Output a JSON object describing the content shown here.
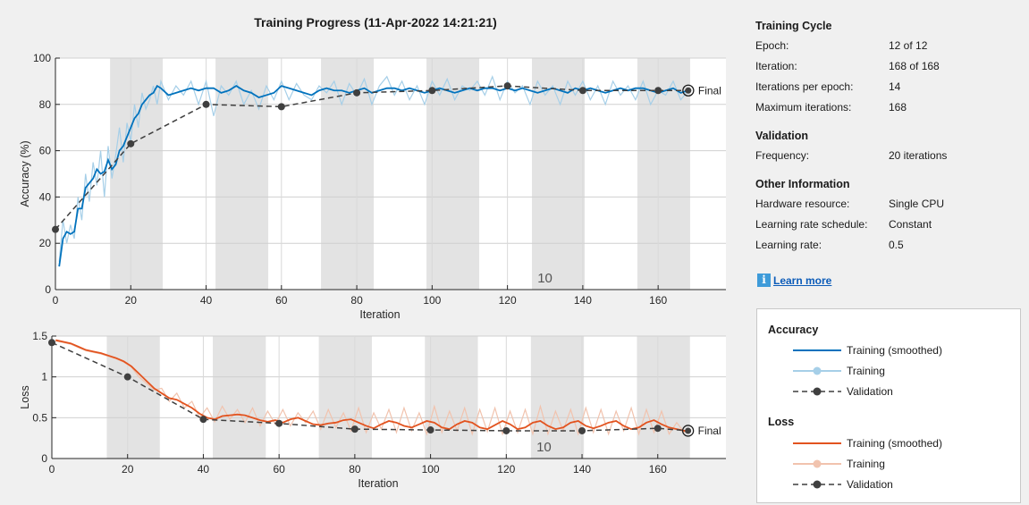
{
  "title": "Training Progress (11-Apr-2022 14:21:21)",
  "colors": {
    "acc_smoothed": "#0072bd",
    "acc_training": "#a6cfe8",
    "loss_smoothed": "#e2531f",
    "loss_training": "#f1c3ae",
    "validation": "#3f3f3f",
    "epoch_band": "#e3e3e3"
  },
  "info": {
    "training_cycle": {
      "title": "Training Cycle",
      "rows": [
        {
          "key": "Epoch:",
          "value": "12 of 12"
        },
        {
          "key": "Iteration:",
          "value": "168 of 168"
        },
        {
          "key": "Iterations per epoch:",
          "value": "14"
        },
        {
          "key": "Maximum iterations:",
          "value": "168"
        }
      ]
    },
    "validation": {
      "title": "Validation",
      "rows": [
        {
          "key": "Frequency:",
          "value": "20 iterations"
        }
      ]
    },
    "other": {
      "title": "Other Information",
      "rows": [
        {
          "key": "Hardware resource:",
          "value": "Single CPU"
        },
        {
          "key": "Learning rate schedule:",
          "value": "Constant"
        },
        {
          "key": "Learning rate:",
          "value": "0.5"
        }
      ]
    },
    "learn_more": {
      "icon": "info-icon",
      "label": "Learn more"
    }
  },
  "legend": {
    "accuracy_title": "Accuracy",
    "loss_title": "Loss",
    "accuracy_items": [
      "Training (smoothed)",
      "Training",
      "Validation"
    ],
    "loss_items": [
      "Training (smoothed)",
      "Training",
      "Validation"
    ]
  },
  "chart_data": [
    {
      "type": "line",
      "xlabel": "Iteration",
      "ylabel": "Accuracy (%)",
      "xlim": [
        0,
        178
      ],
      "ylim": [
        0,
        100
      ],
      "xticks": [
        0,
        20,
        40,
        60,
        80,
        100,
        120,
        140,
        160
      ],
      "yticks": [
        0,
        20,
        40,
        60,
        80,
        100
      ],
      "epoch_bands": [
        [
          14.5,
          28.5
        ],
        [
          42.5,
          56.5
        ],
        [
          70.5,
          84.5
        ],
        [
          98.5,
          112.5
        ],
        [
          126.5,
          140.5
        ],
        [
          154.5,
          168.5
        ]
      ],
      "epoch_annotation": {
        "text": "10",
        "x": 129
      },
      "final_label": "Final",
      "series": [
        {
          "name": "Training (smoothed)",
          "kind": "smoothed",
          "x": [
            1,
            2,
            3,
            4,
            5,
            6,
            7,
            8,
            9,
            10,
            11,
            12,
            13,
            14,
            15,
            16,
            17,
            18,
            19,
            20,
            21,
            22,
            23,
            24,
            25,
            26,
            27,
            28,
            30,
            32,
            34,
            36,
            38,
            40,
            42,
            44,
            46,
            48,
            50,
            52,
            54,
            56,
            58,
            60,
            62,
            64,
            66,
            68,
            70,
            72,
            74,
            76,
            78,
            80,
            82,
            84,
            86,
            88,
            90,
            92,
            94,
            96,
            98,
            100,
            102,
            104,
            106,
            108,
            110,
            112,
            114,
            116,
            118,
            120,
            122,
            124,
            126,
            128,
            130,
            132,
            134,
            136,
            138,
            140,
            142,
            144,
            146,
            148,
            150,
            152,
            154,
            156,
            158,
            160,
            162,
            164,
            166,
            168
          ],
          "y": [
            10,
            22,
            25,
            24,
            25,
            35,
            35,
            44,
            46,
            48,
            52,
            50,
            51,
            56,
            52,
            54,
            60,
            62,
            66,
            70,
            74,
            76,
            80,
            82,
            84,
            85,
            88,
            87,
            84,
            85,
            86,
            87,
            86,
            87,
            87,
            85,
            86,
            88,
            86,
            85,
            83,
            84,
            85,
            88,
            87,
            86,
            85,
            84,
            86,
            87,
            86,
            86,
            85,
            86,
            87,
            85,
            86,
            87,
            87,
            86,
            87,
            86,
            85,
            86,
            87,
            86,
            85,
            86,
            87,
            86,
            87,
            87,
            86,
            87,
            86,
            87,
            86,
            85,
            86,
            87,
            86,
            85,
            87,
            86,
            87,
            86,
            85,
            86,
            87,
            86,
            87,
            87,
            86,
            85,
            86,
            87,
            85,
            86
          ]
        },
        {
          "name": "Training",
          "kind": "raw",
          "x": [
            1,
            2,
            3,
            4,
            5,
            6,
            7,
            8,
            9,
            10,
            11,
            12,
            13,
            14,
            15,
            16,
            17,
            18,
            19,
            20,
            21,
            22,
            23,
            24,
            25,
            26,
            27,
            28,
            30,
            32,
            34,
            36,
            38,
            40,
            42,
            44,
            46,
            48,
            50,
            52,
            54,
            56,
            58,
            60,
            62,
            64,
            66,
            68,
            70,
            72,
            74,
            76,
            78,
            80,
            82,
            84,
            86,
            88,
            90,
            92,
            94,
            96,
            98,
            100,
            102,
            104,
            106,
            108,
            110,
            112,
            114,
            116,
            118,
            120,
            122,
            124,
            126,
            128,
            130,
            132,
            134,
            136,
            138,
            140,
            142,
            144,
            146,
            148,
            150,
            152,
            154,
            156,
            158,
            160,
            162,
            164,
            166,
            168
          ],
          "y": [
            12,
            30,
            20,
            28,
            22,
            40,
            30,
            50,
            38,
            55,
            45,
            60,
            40,
            62,
            48,
            58,
            70,
            55,
            72,
            64,
            80,
            70,
            85,
            78,
            82,
            88,
            80,
            90,
            82,
            88,
            84,
            90,
            80,
            90,
            75,
            88,
            84,
            90,
            80,
            86,
            78,
            88,
            82,
            90,
            82,
            89,
            84,
            82,
            88,
            85,
            90,
            80,
            89,
            84,
            91,
            80,
            88,
            92,
            84,
            90,
            82,
            88,
            80,
            90,
            84,
            91,
            82,
            88,
            86,
            90,
            84,
            92,
            82,
            90,
            85,
            88,
            80,
            90,
            84,
            88,
            80,
            90,
            84,
            90,
            82,
            88,
            80,
            90,
            84,
            88,
            82,
            90,
            80,
            86,
            84,
            90,
            82,
            86
          ]
        },
        {
          "name": "Validation",
          "kind": "validation",
          "x": [
            0,
            20,
            40,
            60,
            80,
            100,
            120,
            140,
            160,
            168
          ],
          "y": [
            26,
            63,
            80,
            79,
            85,
            86,
            88,
            86,
            86,
            86
          ]
        }
      ]
    },
    {
      "type": "line",
      "xlabel": "Iteration",
      "ylabel": "Loss",
      "xlim": [
        0,
        178
      ],
      "ylim": [
        0,
        1.5
      ],
      "xticks": [
        0,
        20,
        40,
        60,
        80,
        100,
        120,
        140,
        160
      ],
      "yticks": [
        0,
        0.5,
        1,
        1.5
      ],
      "ytick_labels": [
        "0",
        "0.5",
        "1",
        "1.5"
      ],
      "epoch_bands": [
        [
          14.5,
          28.5
        ],
        [
          42.5,
          56.5
        ],
        [
          70.5,
          84.5
        ],
        [
          98.5,
          112.5
        ],
        [
          126.5,
          140.5
        ],
        [
          154.5,
          168.5
        ]
      ],
      "epoch_annotation": {
        "text": "10",
        "x": 129
      },
      "final_label": "Final",
      "series": [
        {
          "name": "Training (smoothed)",
          "kind": "smoothed",
          "x": [
            1,
            3,
            5,
            7,
            9,
            11,
            13,
            15,
            17,
            19,
            21,
            23,
            25,
            27,
            29,
            31,
            33,
            35,
            37,
            39,
            41,
            43,
            45,
            47,
            49,
            51,
            53,
            55,
            57,
            59,
            61,
            63,
            65,
            67,
            69,
            71,
            73,
            75,
            77,
            79,
            81,
            83,
            85,
            87,
            89,
            91,
            93,
            95,
            97,
            99,
            101,
            103,
            105,
            107,
            109,
            111,
            113,
            115,
            117,
            119,
            121,
            123,
            125,
            127,
            129,
            131,
            133,
            135,
            137,
            139,
            141,
            143,
            145,
            147,
            149,
            151,
            153,
            155,
            157,
            159,
            161,
            163,
            165,
            167,
            168
          ],
          "y": [
            1.45,
            1.43,
            1.41,
            1.37,
            1.33,
            1.31,
            1.29,
            1.26,
            1.23,
            1.19,
            1.13,
            1.04,
            0.95,
            0.86,
            0.8,
            0.74,
            0.72,
            0.67,
            0.62,
            0.55,
            0.5,
            0.48,
            0.52,
            0.53,
            0.54,
            0.53,
            0.5,
            0.47,
            0.45,
            0.47,
            0.44,
            0.48,
            0.5,
            0.46,
            0.42,
            0.41,
            0.43,
            0.44,
            0.47,
            0.48,
            0.44,
            0.4,
            0.37,
            0.42,
            0.46,
            0.44,
            0.4,
            0.38,
            0.42,
            0.46,
            0.44,
            0.38,
            0.36,
            0.42,
            0.46,
            0.44,
            0.38,
            0.36,
            0.41,
            0.46,
            0.42,
            0.36,
            0.38,
            0.44,
            0.46,
            0.4,
            0.36,
            0.38,
            0.44,
            0.46,
            0.4,
            0.37,
            0.4,
            0.44,
            0.46,
            0.4,
            0.36,
            0.38,
            0.44,
            0.47,
            0.42,
            0.38,
            0.36,
            0.34,
            0.34
          ]
        },
        {
          "name": "Training",
          "kind": "raw",
          "x": [
            1,
            3,
            5,
            7,
            9,
            11,
            13,
            15,
            17,
            19,
            21,
            23,
            25,
            27,
            29,
            31,
            33,
            35,
            37,
            39,
            41,
            43,
            45,
            47,
            49,
            51,
            53,
            55,
            57,
            59,
            61,
            63,
            65,
            67,
            69,
            71,
            73,
            75,
            77,
            79,
            81,
            83,
            85,
            87,
            89,
            91,
            93,
            95,
            97,
            99,
            101,
            103,
            105,
            107,
            109,
            111,
            113,
            115,
            117,
            119,
            121,
            123,
            125,
            127,
            129,
            131,
            133,
            135,
            137,
            139,
            141,
            143,
            145,
            147,
            149,
            151,
            153,
            155,
            157,
            159,
            161,
            163,
            165,
            167,
            168
          ],
          "y": [
            1.44,
            1.42,
            1.4,
            1.36,
            1.32,
            1.3,
            1.28,
            1.25,
            1.22,
            1.18,
            1.12,
            1.0,
            0.92,
            0.84,
            0.86,
            0.7,
            0.8,
            0.62,
            0.7,
            0.5,
            0.62,
            0.45,
            0.64,
            0.48,
            0.6,
            0.44,
            0.62,
            0.4,
            0.58,
            0.42,
            0.6,
            0.4,
            0.56,
            0.44,
            0.58,
            0.36,
            0.6,
            0.38,
            0.56,
            0.34,
            0.62,
            0.32,
            0.56,
            0.36,
            0.6,
            0.32,
            0.62,
            0.34,
            0.56,
            0.3,
            0.64,
            0.32,
            0.58,
            0.34,
            0.62,
            0.3,
            0.6,
            0.33,
            0.62,
            0.3,
            0.58,
            0.32,
            0.6,
            0.3,
            0.64,
            0.3,
            0.58,
            0.34,
            0.6,
            0.3,
            0.62,
            0.32,
            0.6,
            0.3,
            0.58,
            0.34,
            0.62,
            0.3,
            0.6,
            0.32,
            0.58,
            0.3,
            0.44,
            0.32,
            0.34
          ]
        },
        {
          "name": "Validation",
          "kind": "validation",
          "x": [
            0,
            20,
            40,
            60,
            80,
            100,
            120,
            140,
            160,
            168
          ],
          "y": [
            1.42,
            1.0,
            0.48,
            0.43,
            0.36,
            0.35,
            0.34,
            0.34,
            0.37,
            0.34
          ]
        }
      ]
    }
  ]
}
